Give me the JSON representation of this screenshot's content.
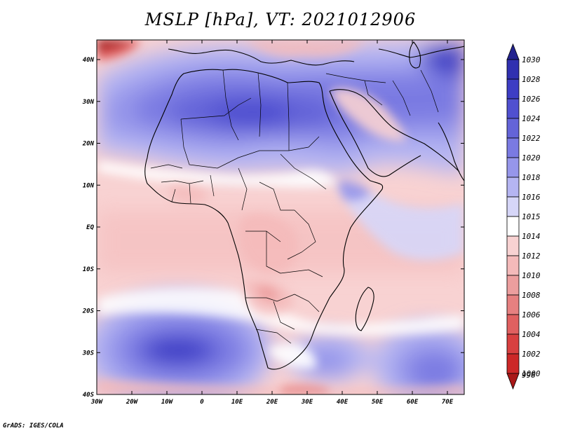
{
  "title": "MSLP [hPa], VT: 2021012906",
  "credit": "GrADS: IGES/COLA",
  "axes": {
    "lat_labels": [
      "40N",
      "30N",
      "20N",
      "10N",
      "EQ",
      "10S",
      "20S",
      "30S",
      "40S"
    ],
    "lon_labels": [
      "30W",
      "20W",
      "10W",
      "0",
      "10E",
      "20E",
      "30E",
      "40E",
      "50E",
      "60E",
      "70E"
    ]
  },
  "colorbar": {
    "levels": [
      "1030",
      "1028",
      "1026",
      "1024",
      "1022",
      "1020",
      "1018",
      "1016",
      "1015",
      "1014",
      "1012",
      "1010",
      "1008",
      "1006",
      "1004",
      "1002",
      "1000",
      "998"
    ],
    "colors": [
      "#23238f",
      "#3030b0",
      "#3d3dc4",
      "#5050d0",
      "#6464d8",
      "#7a7ae2",
      "#9696ea",
      "#b5b5f2",
      "#d6d6f8",
      "#ffffff",
      "#f8d2d2",
      "#f4baba",
      "#ec9e9e",
      "#e68080",
      "#e06060",
      "#d84040",
      "#cc2828",
      "#a81818"
    ]
  },
  "colors": {
    "background": "#ffffff",
    "pressure_base": "#f8d2d2",
    "coastline": "#000000"
  }
}
